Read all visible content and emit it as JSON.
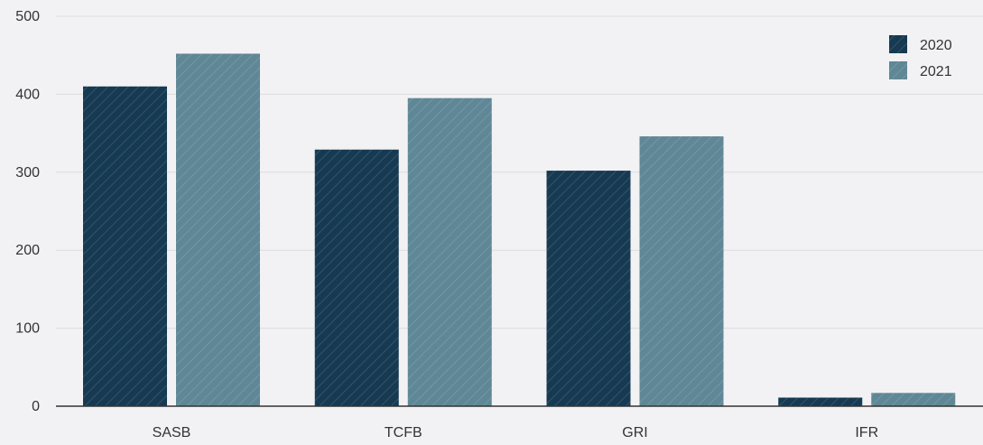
{
  "chart_data": {
    "type": "bar",
    "title": "",
    "xlabel": "",
    "ylabel": "",
    "categories": [
      "SASB",
      "TCFB",
      "GRI",
      "IFR"
    ],
    "series": [
      {
        "name": "2020",
        "color": "#163a52",
        "values": [
          410,
          329,
          302,
          11
        ]
      },
      {
        "name": "2021",
        "color": "#5f8796",
        "values": [
          452,
          395,
          346,
          17
        ]
      }
    ],
    "ylim": [
      0,
      500
    ],
    "yticks": [
      0,
      100,
      200,
      300,
      400,
      500
    ],
    "grid": true,
    "legend_position": "top-right",
    "bar_pattern": "diagonal-hatch"
  }
}
